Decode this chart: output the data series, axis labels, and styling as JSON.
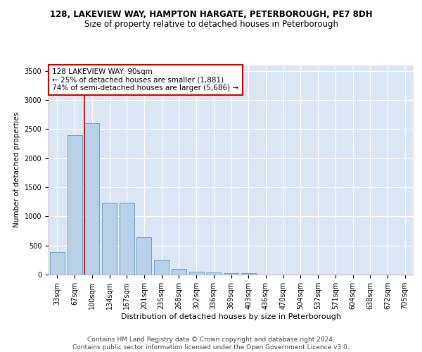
{
  "title1": "128, LAKEVIEW WAY, HAMPTON HARGATE, PETERBOROUGH, PE7 8DH",
  "title2": "Size of property relative to detached houses in Peterborough",
  "xlabel": "Distribution of detached houses by size in Peterborough",
  "ylabel": "Number of detached properties",
  "categories": [
    "33sqm",
    "67sqm",
    "100sqm",
    "134sqm",
    "167sqm",
    "201sqm",
    "235sqm",
    "268sqm",
    "302sqm",
    "336sqm",
    "369sqm",
    "403sqm",
    "436sqm",
    "470sqm",
    "504sqm",
    "537sqm",
    "571sqm",
    "604sqm",
    "638sqm",
    "672sqm",
    "705sqm"
  ],
  "values": [
    390,
    2400,
    2600,
    1240,
    1240,
    640,
    260,
    100,
    50,
    40,
    25,
    25,
    0,
    0,
    0,
    0,
    0,
    0,
    0,
    0,
    0
  ],
  "bar_color": "#b8d0e8",
  "bar_edge_color": "#6ba3c8",
  "vline_color": "#cc0000",
  "annotation_text": "128 LAKEVIEW WAY: 90sqm\n← 25% of detached houses are smaller (1,881)\n74% of semi-detached houses are larger (5,686) →",
  "annotation_box_color": "#ffffff",
  "annotation_box_edge_color": "#cc0000",
  "ylim": [
    0,
    3600
  ],
  "yticks": [
    0,
    500,
    1000,
    1500,
    2000,
    2500,
    3000,
    3500
  ],
  "background_color": "#dce6f5",
  "footer_text": "Contains HM Land Registry data © Crown copyright and database right 2024.\nContains public sector information licensed under the Open Government Licence v3.0.",
  "title1_fontsize": 8.5,
  "title2_fontsize": 8.5,
  "xlabel_fontsize": 8,
  "ylabel_fontsize": 7.5,
  "tick_fontsize": 7,
  "annotation_fontsize": 7.5,
  "footer_fontsize": 6.5
}
